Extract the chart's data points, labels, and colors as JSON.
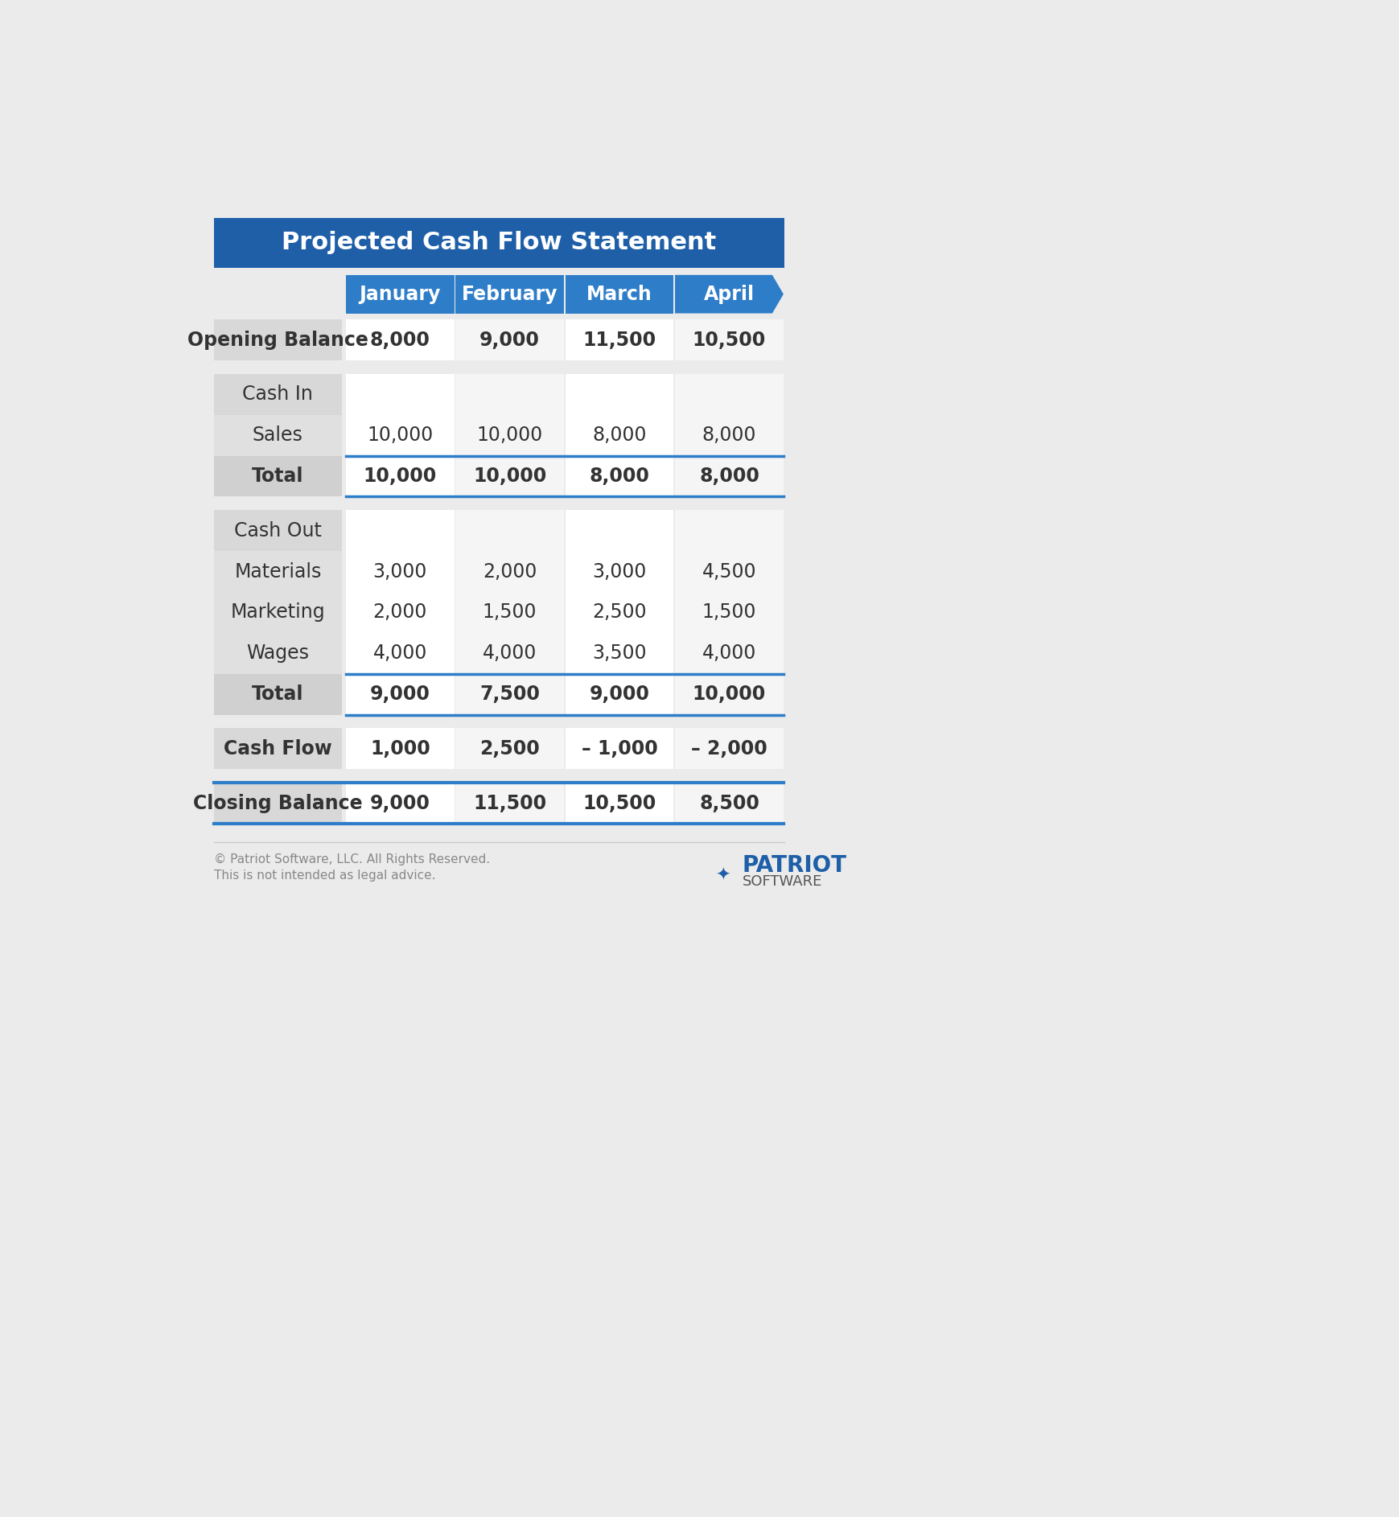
{
  "title": "Projected Cash Flow Statement",
  "title_bg_color": "#1e5fa8",
  "title_text_color": "#ffffff",
  "header_months": [
    "January",
    "February",
    "March",
    "April"
  ],
  "header_bg_color": "#2e7dc9",
  "header_text_color": "#ffffff",
  "bg_color": "#ebebeb",
  "rows": [
    {
      "label": "Opening Balance",
      "values": [
        "8,000",
        "9,000",
        "11,500",
        "10,500"
      ],
      "style": "bold_label",
      "label_bg": "#d8d8d8"
    },
    {
      "label": "",
      "values": null,
      "style": "spacer"
    },
    {
      "label": "Cash In",
      "values": null,
      "style": "section_header",
      "label_bg": "#d8d8d8"
    },
    {
      "label": "Sales",
      "values": [
        "10,000",
        "10,000",
        "8,000",
        "8,000"
      ],
      "style": "normal",
      "label_bg": "#e0e0e0"
    },
    {
      "label": "Total",
      "values": [
        "10,000",
        "10,000",
        "8,000",
        "8,000"
      ],
      "style": "bold_total",
      "label_bg": "#d0d0d0"
    },
    {
      "label": "",
      "values": null,
      "style": "spacer"
    },
    {
      "label": "Cash Out",
      "values": null,
      "style": "section_header",
      "label_bg": "#d8d8d8"
    },
    {
      "label": "Materials",
      "values": [
        "3,000",
        "2,000",
        "3,000",
        "4,500"
      ],
      "style": "normal",
      "label_bg": "#e0e0e0"
    },
    {
      "label": "Marketing",
      "values": [
        "2,000",
        "1,500",
        "2,500",
        "1,500"
      ],
      "style": "normal",
      "label_bg": "#e0e0e0"
    },
    {
      "label": "Wages",
      "values": [
        "4,000",
        "4,000",
        "3,500",
        "4,000"
      ],
      "style": "normal",
      "label_bg": "#e0e0e0"
    },
    {
      "label": "Total",
      "values": [
        "9,000",
        "7,500",
        "9,000",
        "10,000"
      ],
      "style": "bold_total",
      "label_bg": "#d0d0d0"
    },
    {
      "label": "",
      "values": null,
      "style": "spacer"
    },
    {
      "label": "Cash Flow",
      "values": [
        "1,000",
        "2,500",
        "– 1,000",
        "– 2,000"
      ],
      "style": "bold_label",
      "label_bg": "#d8d8d8"
    },
    {
      "label": "",
      "values": null,
      "style": "spacer"
    },
    {
      "label": "Closing Balance",
      "values": [
        "9,000",
        "11,500",
        "10,500",
        "8,500"
      ],
      "style": "bold_label",
      "label_bg": "#d8d8d8"
    }
  ],
  "footer_text1": "© Patriot Software, LLC. All Rights Reserved.",
  "footer_text2": "This is not intended as legal advice.",
  "footer_text_color": "#888888",
  "divider_color": "#2e7dc9",
  "white_cell": "#ffffff",
  "light_cell": "#f5f5f5"
}
